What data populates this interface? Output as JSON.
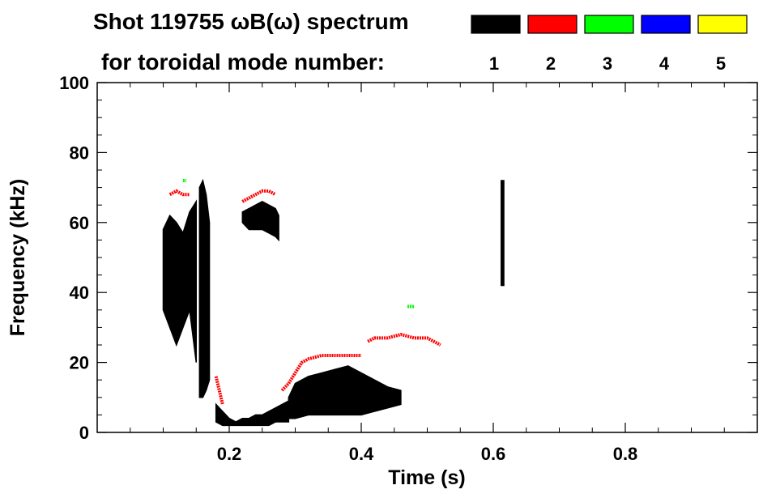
{
  "chart_data": {
    "type": "spectrogram",
    "title_line1": "Shot 119755 ωB(ω) spectrum",
    "title_line2": "for toroidal mode number:",
    "xlabel": "Time (s)",
    "ylabel": "Frequency (kHz)",
    "xlim": [
      0.0,
      1.0
    ],
    "ylim": [
      0,
      100
    ],
    "x_ticks": [
      0.2,
      0.4,
      0.6,
      0.8
    ],
    "x_tick_labels": [
      "0.2",
      "0.4",
      "0.6",
      "0.8"
    ],
    "y_ticks": [
      0,
      20,
      40,
      60,
      80,
      100
    ],
    "y_tick_labels": [
      "0",
      "20",
      "40",
      "60",
      "80",
      "100"
    ],
    "legend": [
      {
        "mode": "1",
        "color": "#000000"
      },
      {
        "mode": "2",
        "color": "#ff0000"
      },
      {
        "mode": "3",
        "color": "#00ff00"
      },
      {
        "mode": "4",
        "color": "#0000ff"
      },
      {
        "mode": "5",
        "color": "#ffff00"
      }
    ],
    "series": [
      {
        "mode": "1",
        "color": "#000000",
        "regions": [
          {
            "kind": "band",
            "t": [
              0.1,
              0.11,
              0.12,
              0.13,
              0.14,
              0.15
            ],
            "lo": [
              35,
              30,
              25,
              30,
              35,
              20
            ],
            "hi": [
              58,
              62,
              60,
              57,
              63,
              66
            ]
          },
          {
            "kind": "band",
            "t": [
              0.155,
              0.16,
              0.165,
              0.17
            ],
            "lo": [
              10,
              10,
              12,
              15
            ],
            "hi": [
              70,
              72,
              68,
              60
            ]
          },
          {
            "kind": "band",
            "t": [
              0.22,
              0.23,
              0.24,
              0.25,
              0.26,
              0.27,
              0.275
            ],
            "lo": [
              60,
              58,
              58,
              58,
              57,
              56,
              55
            ],
            "hi": [
              63,
              64,
              65,
              66,
              65,
              64,
              62
            ]
          },
          {
            "kind": "band",
            "t": [
              0.18,
              0.19,
              0.2,
              0.21,
              0.22,
              0.23,
              0.24,
              0.25,
              0.26,
              0.27,
              0.28,
              0.29
            ],
            "lo": [
              3,
              2,
              2,
              2,
              2,
              2,
              2,
              2,
              2,
              3,
              3,
              3
            ],
            "hi": [
              8,
              6,
              4,
              3,
              4,
              4,
              5,
              5,
              6,
              7,
              8,
              9
            ]
          },
          {
            "kind": "band",
            "t": [
              0.29,
              0.3,
              0.32,
              0.34,
              0.36,
              0.38,
              0.4,
              0.42,
              0.44,
              0.46
            ],
            "lo": [
              4,
              4,
              5,
              5,
              5,
              5,
              5,
              6,
              7,
              8
            ],
            "hi": [
              10,
              14,
              16,
              17,
              18,
              19,
              17,
              15,
              13,
              12
            ]
          },
          {
            "kind": "band",
            "t": [
              0.612,
              0.616
            ],
            "lo": [
              42,
              42
            ],
            "hi": [
              72,
              72
            ]
          }
        ]
      },
      {
        "mode": "2",
        "color": "#ff0000",
        "regions": [
          {
            "kind": "line",
            "t": [
              0.11,
              0.12,
              0.13,
              0.14
            ],
            "f": [
              68,
              69,
              68,
              68
            ]
          },
          {
            "kind": "line",
            "t": [
              0.22,
              0.23,
              0.24,
              0.25,
              0.26,
              0.27
            ],
            "f": [
              66,
              67,
              68,
              69,
              69,
              68
            ]
          },
          {
            "kind": "line",
            "t": [
              0.18,
              0.185,
              0.19
            ],
            "f": [
              16,
              12,
              8
            ]
          },
          {
            "kind": "line",
            "t": [
              0.28,
              0.29,
              0.3,
              0.31,
              0.32,
              0.34,
              0.36,
              0.38,
              0.4
            ],
            "f": [
              12,
              14,
              17,
              20,
              21,
              22,
              22,
              22,
              22
            ]
          },
          {
            "kind": "line",
            "t": [
              0.41,
              0.42,
              0.44,
              0.46,
              0.48,
              0.5,
              0.52
            ],
            "f": [
              26,
              27,
              27,
              28,
              27,
              27,
              25
            ]
          }
        ]
      },
      {
        "mode": "3",
        "color": "#00ff00",
        "regions": [
          {
            "kind": "line",
            "t": [
              0.13,
              0.135
            ],
            "f": [
              72,
              72
            ]
          },
          {
            "kind": "line",
            "t": [
              0.47,
              0.48
            ],
            "f": [
              36,
              36
            ]
          }
        ]
      }
    ]
  }
}
